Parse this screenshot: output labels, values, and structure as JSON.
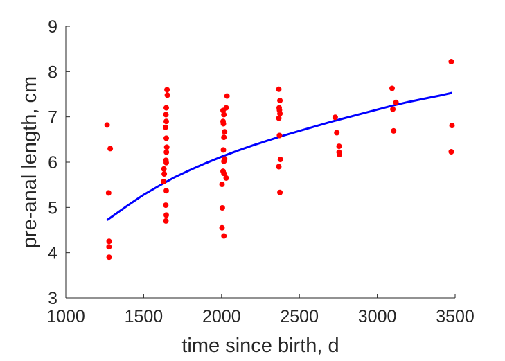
{
  "chart_data": {
    "type": "scatter",
    "xlabel": "time since birth, d",
    "ylabel": "pre-anal length, cm",
    "xlim": [
      1000,
      3500
    ],
    "ylim": [
      3,
      9
    ],
    "xticks": [
      1000,
      1500,
      2000,
      2500,
      3000,
      3500
    ],
    "yticks": [
      3,
      4,
      5,
      6,
      7,
      8,
      9
    ],
    "xtick_labels": [
      "1000",
      "1500",
      "2000",
      "2500",
      "3000",
      "3500"
    ],
    "ytick_labels": [
      "3",
      "4",
      "5",
      "6",
      "7",
      "8",
      "9"
    ],
    "grid": false,
    "series": [
      {
        "kind": "points",
        "color": "#ff0000",
        "points": [
          [
            1265,
            6.82
          ],
          [
            1285,
            6.3
          ],
          [
            1275,
            5.32
          ],
          [
            1278,
            4.25
          ],
          [
            1277,
            4.13
          ],
          [
            1278,
            3.9
          ],
          [
            1650,
            7.6
          ],
          [
            1652,
            7.48
          ],
          [
            1645,
            7.2
          ],
          [
            1643,
            7.05
          ],
          [
            1645,
            6.9
          ],
          [
            1640,
            6.77
          ],
          [
            1645,
            6.53
          ],
          [
            1648,
            6.33
          ],
          [
            1646,
            6.22
          ],
          [
            1643,
            6.04
          ],
          [
            1645,
            5.99
          ],
          [
            1630,
            5.85
          ],
          [
            1632,
            5.74
          ],
          [
            1628,
            5.57
          ],
          [
            1645,
            5.37
          ],
          [
            1642,
            5.05
          ],
          [
            1645,
            4.83
          ],
          [
            1643,
            4.7
          ],
          [
            2035,
            7.46
          ],
          [
            2030,
            7.2
          ],
          [
            2010,
            7.14
          ],
          [
            2015,
            7.05
          ],
          [
            2010,
            6.9
          ],
          [
            2012,
            6.85
          ],
          [
            2020,
            6.67
          ],
          [
            2015,
            6.55
          ],
          [
            2012,
            6.27
          ],
          [
            2020,
            6.07
          ],
          [
            2015,
            6.02
          ],
          [
            2010,
            5.8
          ],
          [
            2015,
            5.75
          ],
          [
            2030,
            5.65
          ],
          [
            2003,
            5.51
          ],
          [
            2005,
            4.99
          ],
          [
            2003,
            4.55
          ],
          [
            2015,
            4.37
          ],
          [
            2368,
            7.61
          ],
          [
            2375,
            7.36
          ],
          [
            2370,
            7.2
          ],
          [
            2372,
            7.15
          ],
          [
            2375,
            7.07
          ],
          [
            2368,
            6.97
          ],
          [
            2372,
            6.59
          ],
          [
            2378,
            6.06
          ],
          [
            2368,
            5.9
          ],
          [
            2375,
            5.33
          ],
          [
            2730,
            6.99
          ],
          [
            2740,
            6.65
          ],
          [
            2755,
            6.35
          ],
          [
            2755,
            6.22
          ],
          [
            2757,
            6.17
          ],
          [
            3095,
            7.63
          ],
          [
            3120,
            7.32
          ],
          [
            3100,
            7.17
          ],
          [
            3105,
            6.69
          ],
          [
            3475,
            8.22
          ],
          [
            3480,
            6.81
          ],
          [
            3475,
            6.23
          ]
        ]
      },
      {
        "kind": "fit-curve",
        "color": "#0000ff",
        "points": [
          [
            1265,
            4.72
          ],
          [
            1400,
            5.05
          ],
          [
            1500,
            5.28
          ],
          [
            1600,
            5.48
          ],
          [
            1700,
            5.67
          ],
          [
            1800,
            5.83
          ],
          [
            1900,
            5.98
          ],
          [
            2000,
            6.12
          ],
          [
            2100,
            6.25
          ],
          [
            2200,
            6.37
          ],
          [
            2300,
            6.48
          ],
          [
            2400,
            6.59
          ],
          [
            2500,
            6.69
          ],
          [
            2600,
            6.79
          ],
          [
            2700,
            6.89
          ],
          [
            2800,
            6.98
          ],
          [
            2900,
            7.07
          ],
          [
            3000,
            7.16
          ],
          [
            3100,
            7.25
          ],
          [
            3200,
            7.33
          ],
          [
            3300,
            7.4
          ],
          [
            3400,
            7.47
          ],
          [
            3480,
            7.53
          ]
        ]
      }
    ]
  }
}
